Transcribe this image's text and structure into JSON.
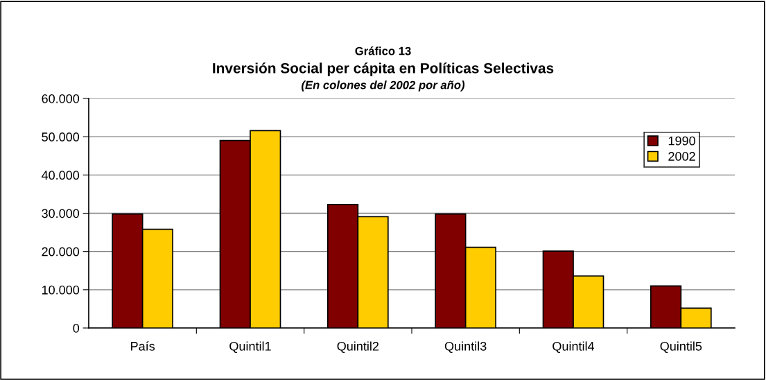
{
  "chart_data": {
    "type": "bar",
    "title": "Gráfico 13",
    "subtitle": "Inversión Social per cápita en Políticas Selectivas",
    "annotations": [
      "(En colones del 2002 por año)"
    ],
    "categories": [
      "País",
      "Quintil1",
      "Quintil2",
      "Quintil3",
      "Quintil4",
      "Quintil5"
    ],
    "series": [
      {
        "name": "1990",
        "color": "#800000",
        "values": [
          29800,
          49000,
          32300,
          29800,
          20100,
          11000
        ]
      },
      {
        "name": "2002",
        "color": "#ffcc00",
        "values": [
          25800,
          51600,
          29100,
          21100,
          13600,
          5200
        ]
      }
    ],
    "ylim": [
      0,
      60000
    ],
    "yticks": [
      {
        "value": 0,
        "label": "0"
      },
      {
        "value": 10000,
        "label": "10.000"
      },
      {
        "value": 20000,
        "label": "20.000"
      },
      {
        "value": 30000,
        "label": "30.000"
      },
      {
        "value": 40000,
        "label": "40.000"
      },
      {
        "value": 50000,
        "label": "50.000"
      },
      {
        "value": 60000,
        "label": "60.000"
      }
    ],
    "grid": "y",
    "legend": "top right"
  }
}
